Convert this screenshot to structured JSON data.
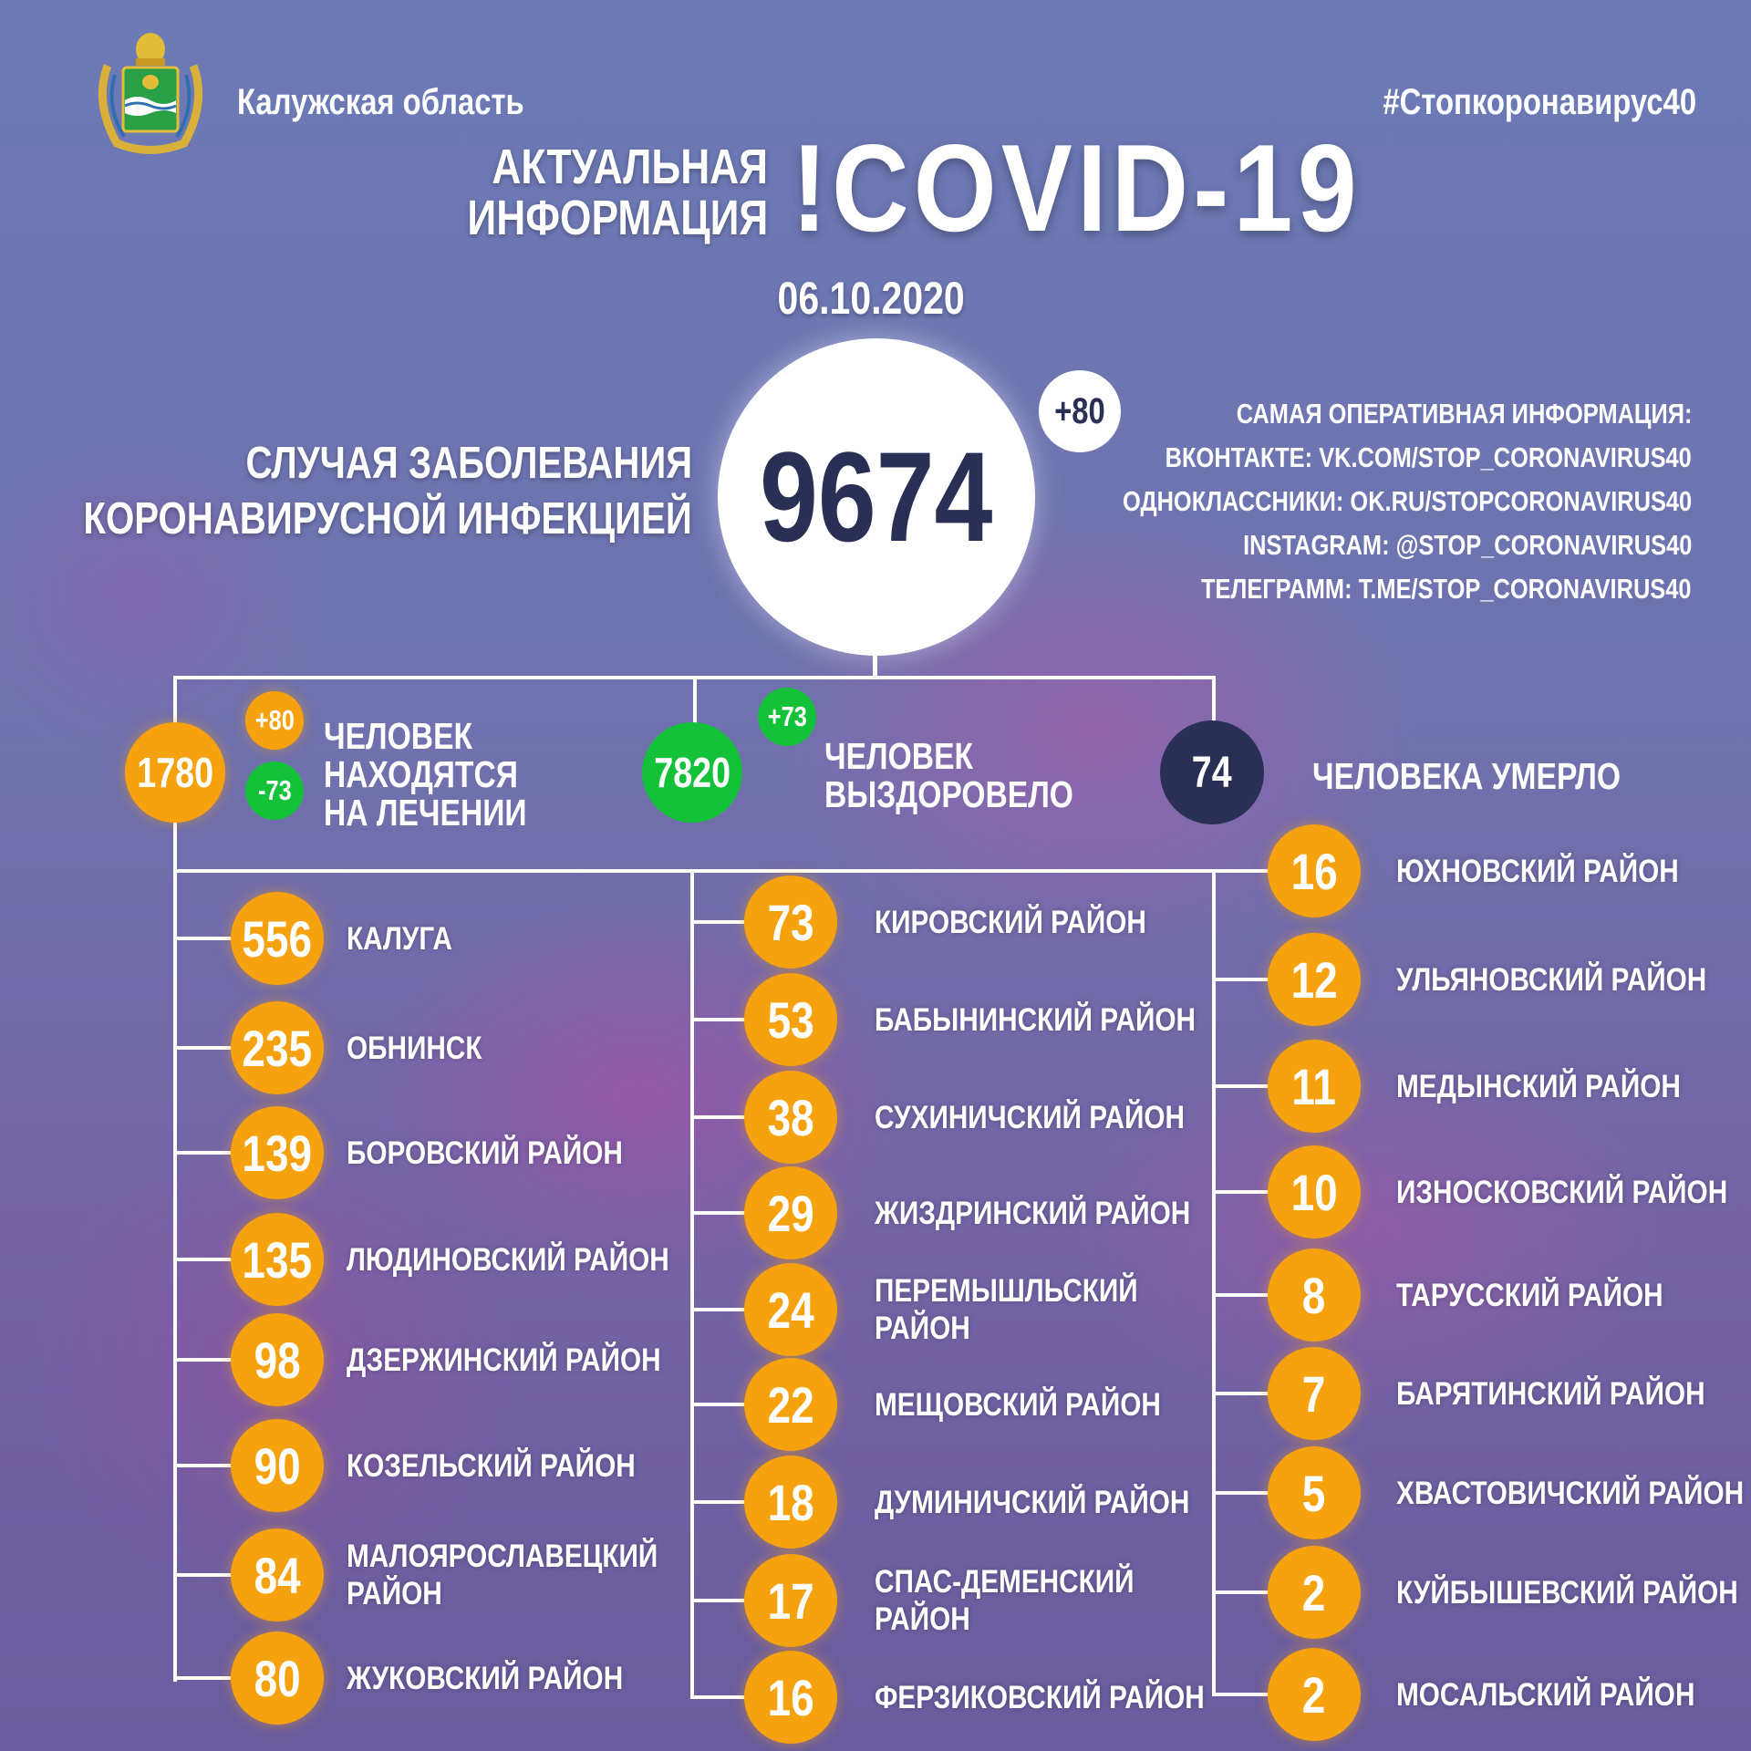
{
  "header": {
    "region": "Калужская область",
    "hashtag": "#Стопкоронавирус40",
    "title_line1": "АКТУАЛЬНАЯ",
    "title_line2": "ИНФОРМАЦИЯ",
    "title_main": "!COVID-19",
    "date": "06.10.2020"
  },
  "total": {
    "label_line1": "СЛУЧАЯ ЗАБОЛЕВАНИЯ",
    "label_line2": "КОРОНАВИРУСНОЙ ИНФЕКЦИЕЙ",
    "value": "9674",
    "delta": "+80"
  },
  "info": {
    "lines": [
      "САМАЯ ОПЕРАТИВНАЯ ИНФОРМАЦИЯ:",
      "ВКОНТАКТЕ: VK.COM/STOP_CORONAVIRUS40",
      "ОДНОКЛАССНИКИ: OK.RU/STOPCORONAVIRUS40",
      "INSTAGRAM: @STOP_CORONAVIRUS40",
      "ТЕЛЕГРАММ: T.ME/STOP_CORONAVIRUS40"
    ]
  },
  "stats": {
    "treatment": {
      "value": "1780",
      "plus": "+80",
      "minus": "-73",
      "line1": "ЧЕЛОВЕК",
      "line2": "НАХОДЯТСЯ",
      "line3": "НА ЛЕЧЕНИИ"
    },
    "recovered": {
      "value": "7820",
      "plus": "+73",
      "line1": "ЧЕЛОВЕК",
      "line2": "ВЫЗДОРОВЕЛО"
    },
    "died": {
      "value": "74",
      "label": "ЧЕЛОВЕКА УМЕРЛО"
    }
  },
  "colors": {
    "orange": "#f6a20f",
    "green": "#14c23a",
    "navy": "#2a2f55",
    "background": "#6f72ae"
  },
  "emblem": {
    "icon": "kaluga-oblast-coat-of-arms"
  },
  "districts": {
    "col1": [
      {
        "value": "556",
        "name": "КАЛУГА"
      },
      {
        "value": "235",
        "name": "ОБНИНСК"
      },
      {
        "value": "139",
        "name": "БОРОВСКИЙ РАЙОН"
      },
      {
        "value": "135",
        "name": "ЛЮДИНОВСКИЙ РАЙОН"
      },
      {
        "value": "98",
        "name": "ДЗЕРЖИНСКИЙ РАЙОН"
      },
      {
        "value": "90",
        "name": "КОЗЕЛЬСКИЙ РАЙОН"
      },
      {
        "value": "84",
        "name": "МАЛОЯРОСЛАВЕЦКИЙ\nРАЙОН"
      },
      {
        "value": "80",
        "name": "ЖУКОВСКИЙ РАЙОН"
      }
    ],
    "col2": [
      {
        "value": "73",
        "name": "КИРОВСКИЙ РАЙОН"
      },
      {
        "value": "53",
        "name": "БАБЫНИНСКИЙ РАЙОН"
      },
      {
        "value": "38",
        "name": "СУХИНИЧСКИЙ РАЙОН"
      },
      {
        "value": "29",
        "name": "ЖИЗДРИНСКИЙ РАЙОН"
      },
      {
        "value": "24",
        "name": "ПЕРЕМЫШЛЬСКИЙ\nРАЙОН"
      },
      {
        "value": "22",
        "name": "МЕЩОВСКИЙ РАЙОН"
      },
      {
        "value": "18",
        "name": "ДУМИНИЧСКИЙ РАЙОН"
      },
      {
        "value": "17",
        "name": "СПАС-ДЕМЕНСКИЙ\nРАЙОН"
      },
      {
        "value": "16",
        "name": "ФЕРЗИКОВСКИЙ РАЙОН"
      }
    ],
    "col3": [
      {
        "value": "16",
        "name": "ЮХНОВСКИЙ РАЙОН"
      },
      {
        "value": "12",
        "name": "УЛЬЯНОВСКИЙ РАЙОН"
      },
      {
        "value": "11",
        "name": "МЕДЫНСКИЙ РАЙОН"
      },
      {
        "value": "10",
        "name": "ИЗНОСКОВСКИЙ РАЙОН"
      },
      {
        "value": "8",
        "name": "ТАРУССКИЙ РАЙОН"
      },
      {
        "value": "7",
        "name": "БАРЯТИНСКИЙ РАЙОН"
      },
      {
        "value": "5",
        "name": "ХВАСТОВИЧСКИЙ РАЙОН"
      },
      {
        "value": "2",
        "name": "КУЙБЫШЕВСКИЙ РАЙОН"
      },
      {
        "value": "2",
        "name": "МОСАЛЬСКИЙ РАЙОН"
      }
    ]
  }
}
